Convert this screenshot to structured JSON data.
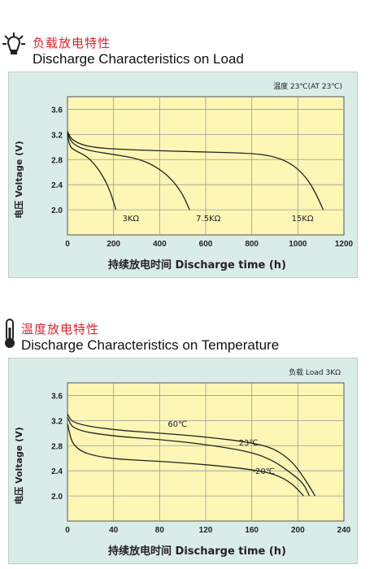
{
  "sections": [
    {
      "icon": "lightbulb-icon",
      "title_cn": "负载放电特性",
      "title_en": "Discharge Characteristics on Load"
    },
    {
      "icon": "thermometer-icon",
      "title_cn": "温度放电特性",
      "title_en": "Discharge Characteristics on Temperature"
    }
  ],
  "chart_data": [
    {
      "type": "line",
      "note": "温度 23℃(AT 23℃)",
      "xlabel": "持续放电时间    Discharge time (h)",
      "ylabel": "电压  Voltage (V)",
      "xlim": [
        0,
        1200
      ],
      "ylim": [
        1.6,
        3.8
      ],
      "x_ticks": [
        0,
        200,
        400,
        600,
        800,
        1000,
        1200
      ],
      "y_ticks": [
        2.0,
        2.4,
        2.8,
        3.2,
        3.6
      ],
      "grid": true,
      "series": [
        {
          "name": "3KΩ",
          "points": [
            [
              0,
              3.2
            ],
            [
              10,
              3.0
            ],
            [
              40,
              2.93
            ],
            [
              80,
              2.86
            ],
            [
              120,
              2.72
            ],
            [
              160,
              2.5
            ],
            [
              190,
              2.25
            ],
            [
              210,
              2.0
            ]
          ]
        },
        {
          "name": "7.5KΩ",
          "points": [
            [
              0,
              3.22
            ],
            [
              20,
              3.05
            ],
            [
              80,
              2.95
            ],
            [
              200,
              2.88
            ],
            [
              300,
              2.82
            ],
            [
              380,
              2.7
            ],
            [
              450,
              2.5
            ],
            [
              500,
              2.25
            ],
            [
              530,
              2.0
            ]
          ]
        },
        {
          "name": "15KΩ",
          "points": [
            [
              0,
              3.25
            ],
            [
              20,
              3.1
            ],
            [
              100,
              2.99
            ],
            [
              300,
              2.95
            ],
            [
              600,
              2.92
            ],
            [
              800,
              2.9
            ],
            [
              900,
              2.85
            ],
            [
              980,
              2.72
            ],
            [
              1040,
              2.5
            ],
            [
              1080,
              2.25
            ],
            [
              1110,
              2.0
            ]
          ]
        }
      ]
    },
    {
      "type": "line",
      "note": "负载   Load 3KΩ",
      "xlabel": "持续放电时间    Discharge time (h)",
      "ylabel": "电压  Voltage (V)",
      "xlim": [
        0,
        240
      ],
      "ylim": [
        1.6,
        3.8
      ],
      "x_ticks": [
        0,
        40,
        80,
        120,
        160,
        200,
        240
      ],
      "y_ticks": [
        2.0,
        2.4,
        2.8,
        3.2,
        3.6
      ],
      "grid": true,
      "series": [
        {
          "name": "60℃",
          "points": [
            [
              0,
              3.3
            ],
            [
              5,
              3.15
            ],
            [
              40,
              3.05
            ],
            [
              80,
              3.0
            ],
            [
              120,
              2.94
            ],
            [
              160,
              2.85
            ],
            [
              180,
              2.75
            ],
            [
              195,
              2.55
            ],
            [
              205,
              2.3
            ],
            [
              215,
              2.0
            ]
          ]
        },
        {
          "name": "23℃",
          "points": [
            [
              0,
              3.25
            ],
            [
              5,
              3.05
            ],
            [
              40,
              2.95
            ],
            [
              80,
              2.9
            ],
            [
              120,
              2.82
            ],
            [
              160,
              2.7
            ],
            [
              180,
              2.55
            ],
            [
              195,
              2.35
            ],
            [
              205,
              2.2
            ],
            [
              210,
              2.0
            ]
          ]
        },
        {
          "name": "-20℃",
          "points": [
            [
              0,
              3.15
            ],
            [
              5,
              2.75
            ],
            [
              30,
              2.6
            ],
            [
              80,
              2.55
            ],
            [
              120,
              2.5
            ],
            [
              160,
              2.42
            ],
            [
              180,
              2.35
            ],
            [
              195,
              2.2
            ],
            [
              205,
              2.0
            ]
          ]
        }
      ]
    }
  ]
}
